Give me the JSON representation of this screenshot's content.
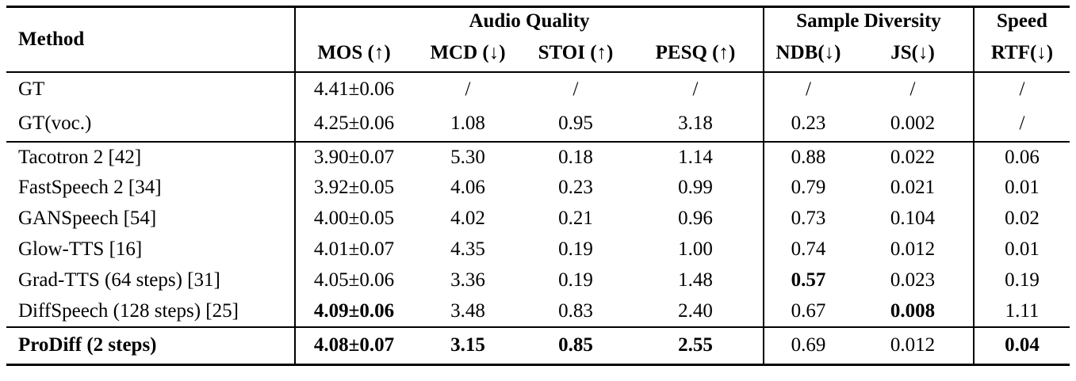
{
  "colors": {
    "text": "#000000",
    "background": "#ffffff",
    "rule": "#000000"
  },
  "table": {
    "method_header": "Method",
    "groups": [
      {
        "label": "Audio Quality",
        "span": 4
      },
      {
        "label": "Sample Diversity",
        "span": 2
      },
      {
        "label": "Speed",
        "span": 1
      }
    ],
    "subcolumns": [
      "MOS (↑)",
      "MCD (↓)",
      "STOI (↑)",
      "PESQ (↑)",
      "NDB(↓)",
      "JS(↓)",
      "RTF(↓)"
    ],
    "sections": [
      {
        "name": "ground-truth",
        "rows": [
          {
            "method": "GT",
            "method_bold": false,
            "values": [
              {
                "t": "4.41±0.06",
                "b": false
              },
              {
                "t": "/",
                "b": false
              },
              {
                "t": "/",
                "b": false
              },
              {
                "t": "/",
                "b": false
              },
              {
                "t": "/",
                "b": false
              },
              {
                "t": "/",
                "b": false
              },
              {
                "t": "/",
                "b": false
              }
            ]
          },
          {
            "method": "GT(voc.)",
            "method_bold": false,
            "values": [
              {
                "t": "4.25±0.06",
                "b": false
              },
              {
                "t": "1.08",
                "b": false
              },
              {
                "t": "0.95",
                "b": false
              },
              {
                "t": "3.18",
                "b": false
              },
              {
                "t": "0.23",
                "b": false
              },
              {
                "t": "0.002",
                "b": false
              },
              {
                "t": "/",
                "b": false
              }
            ]
          }
        ]
      },
      {
        "name": "baselines",
        "rows": [
          {
            "method": "Tacotron 2 [42]",
            "method_bold": false,
            "values": [
              {
                "t": "3.90±0.07",
                "b": false
              },
              {
                "t": "5.30",
                "b": false
              },
              {
                "t": "0.18",
                "b": false
              },
              {
                "t": "1.14",
                "b": false
              },
              {
                "t": "0.88",
                "b": false
              },
              {
                "t": "0.022",
                "b": false
              },
              {
                "t": "0.06",
                "b": false
              }
            ]
          },
          {
            "method": "FastSpeech 2 [34]",
            "method_bold": false,
            "values": [
              {
                "t": "3.92±0.05",
                "b": false
              },
              {
                "t": "4.06",
                "b": false
              },
              {
                "t": "0.23",
                "b": false
              },
              {
                "t": "0.99",
                "b": false
              },
              {
                "t": "0.79",
                "b": false
              },
              {
                "t": "0.021",
                "b": false
              },
              {
                "t": "0.01",
                "b": false
              }
            ]
          },
          {
            "method": "GANSpeech [54]",
            "method_bold": false,
            "values": [
              {
                "t": "4.00±0.05",
                "b": false
              },
              {
                "t": "4.02",
                "b": false
              },
              {
                "t": "0.21",
                "b": false
              },
              {
                "t": "0.96",
                "b": false
              },
              {
                "t": "0.73",
                "b": false
              },
              {
                "t": "0.104",
                "b": false
              },
              {
                "t": "0.02",
                "b": false
              }
            ]
          },
          {
            "method": "Glow-TTS [16]",
            "method_bold": false,
            "values": [
              {
                "t": "4.01±0.07",
                "b": false
              },
              {
                "t": "4.35",
                "b": false
              },
              {
                "t": "0.19",
                "b": false
              },
              {
                "t": "1.00",
                "b": false
              },
              {
                "t": "0.74",
                "b": false
              },
              {
                "t": "0.012",
                "b": false
              },
              {
                "t": "0.01",
                "b": false
              }
            ]
          },
          {
            "method": "Grad-TTS (64 steps) [31]",
            "method_bold": false,
            "values": [
              {
                "t": "4.05±0.06",
                "b": false
              },
              {
                "t": "3.36",
                "b": false
              },
              {
                "t": "0.19",
                "b": false
              },
              {
                "t": "1.48",
                "b": false
              },
              {
                "t": "0.57",
                "b": true
              },
              {
                "t": "0.023",
                "b": false
              },
              {
                "t": "0.19",
                "b": false
              }
            ]
          },
          {
            "method": "DiffSpeech (128 steps) [25]",
            "method_bold": false,
            "values": [
              {
                "t": "4.09±0.06",
                "b": true
              },
              {
                "t": "3.48",
                "b": false
              },
              {
                "t": "0.83",
                "b": false
              },
              {
                "t": "2.40",
                "b": false
              },
              {
                "t": "0.67",
                "b": false
              },
              {
                "t": "0.008",
                "b": true
              },
              {
                "t": "1.11",
                "b": false
              }
            ]
          }
        ]
      },
      {
        "name": "proposed",
        "rows": [
          {
            "method": "ProDiff (2 steps)",
            "method_bold": true,
            "values": [
              {
                "t": "4.08±0.07",
                "b": true
              },
              {
                "t": "3.15",
                "b": true
              },
              {
                "t": "0.85",
                "b": true
              },
              {
                "t": "2.55",
                "b": true
              },
              {
                "t": "0.69",
                "b": false
              },
              {
                "t": "0.012",
                "b": false
              },
              {
                "t": "0.04",
                "b": true
              }
            ]
          }
        ]
      }
    ]
  }
}
